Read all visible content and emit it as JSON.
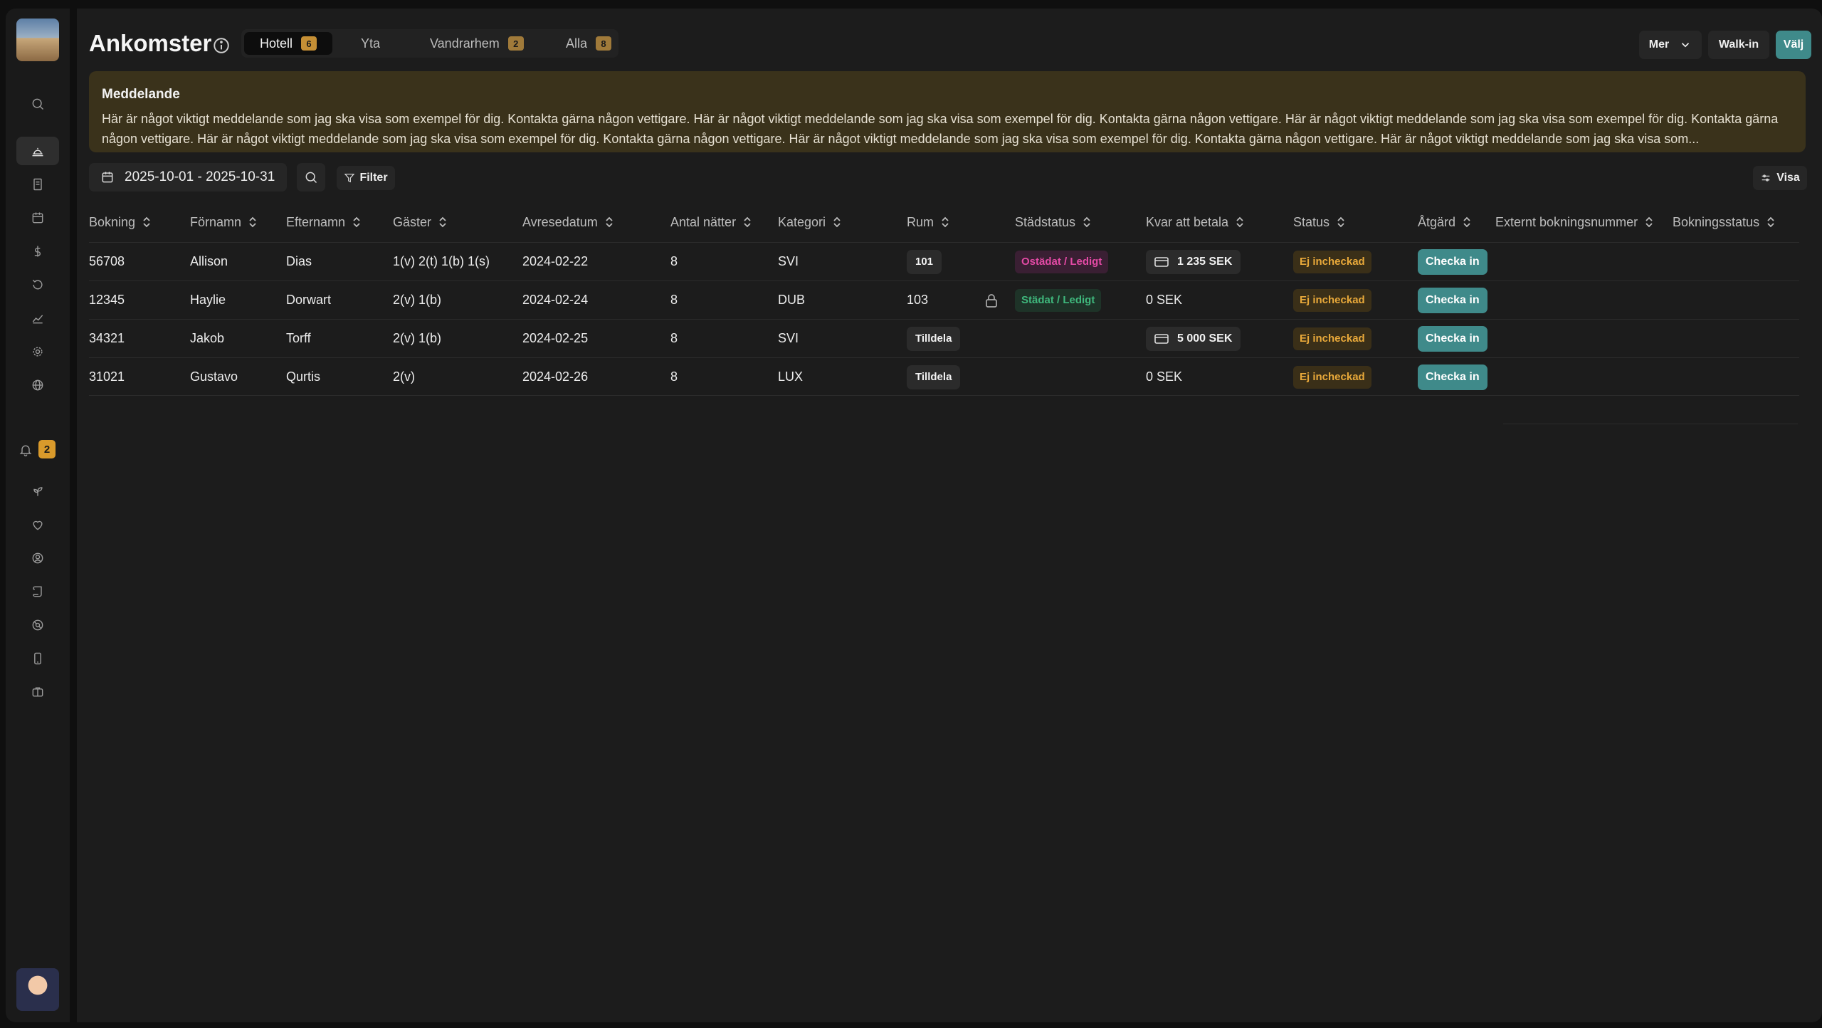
{
  "page": {
    "title": "Ankomster",
    "tabs": [
      {
        "label": "Hotell",
        "count": "6"
      },
      {
        "label": "Yta",
        "count": ""
      },
      {
        "label": "Vandrarhem",
        "count": "2"
      },
      {
        "label": "Alla",
        "count": "8"
      }
    ],
    "actions": {
      "mer": "Mer",
      "walkin": "Walk-in",
      "valj": "Välj"
    }
  },
  "sidebar": {
    "notification_count": "2"
  },
  "message": {
    "title": "Meddelande",
    "body": "Här är något viktigt meddelande som jag ska visa som exempel för dig. Kontakta gärna någon vettigare. Här är något viktigt meddelande som jag ska visa som exempel för dig. Kontakta gärna någon vettigare. Här är något viktigt meddelande som jag ska visa som exempel för dig. Kontakta gärna någon vettigare. Här är något viktigt meddelande som jag ska visa som exempel för dig. Kontakta gärna någon vettigare. Här är något viktigt meddelande som jag ska visa som exempel för dig. Kontakta gärna någon vettigare. Här är något viktigt meddelande som jag ska visa som..."
  },
  "toolbar": {
    "date_range": "2025-10-01 - 2025-10-31",
    "filter": "Filter",
    "visa": "Visa"
  },
  "table": {
    "headers": {
      "bokning": "Bokning",
      "fornamn": "Förnamn",
      "efternamn": "Efternamn",
      "gaster": "Gäster",
      "avresedatum": "Avresedatum",
      "antal_natter": "Antal nätter",
      "kategori": "Kategori",
      "rum": "Rum",
      "stadstatus": "Städstatus",
      "kvar_att_betala": "Kvar att betala",
      "status": "Status",
      "atgard": "Åtgärd",
      "externt": "Externt bokningsnummer",
      "bokningsstatus": "Bokningsstatus"
    },
    "rows": [
      {
        "bokning": "56708",
        "fornamn": "Allison",
        "efternamn": "Dias",
        "gaster": "1(v) 2(t) 1(b) 1(s)",
        "avresedatum": "2024-02-22",
        "natter": "8",
        "kategori": "SVI",
        "rum": "101",
        "stad": "Ostädat / Ledigt",
        "kvar": "1 235 SEK",
        "status": "Ej incheckad",
        "atgard": "Checka in"
      },
      {
        "bokning": "12345",
        "fornamn": "Haylie",
        "efternamn": "Dorwart",
        "gaster": "2(v) 1(b)",
        "avresedatum": "2024-02-24",
        "natter": "8",
        "kategori": "DUB",
        "rum": "103",
        "stad": "Städat / Ledigt",
        "kvar": "0 SEK",
        "status": "Ej incheckad",
        "atgard": "Checka in"
      },
      {
        "bokning": "34321",
        "fornamn": "Jakob",
        "efternamn": "Torff",
        "gaster": "2(v) 1(b)",
        "avresedatum": "2024-02-25",
        "natter": "8",
        "kategori": "SVI",
        "rum": "Tilldela",
        "stad": "",
        "kvar": "5 000 SEK",
        "status": "Ej incheckad",
        "atgard": "Checka in"
      },
      {
        "bokning": "31021",
        "fornamn": "Gustavo",
        "efternamn": "Qurtis",
        "gaster": "2(v)",
        "avresedatum": "2024-02-26",
        "natter": "8",
        "kategori": "LUX",
        "rum": "Tilldela",
        "stad": "",
        "kvar": "0 SEK",
        "status": "Ej incheckad",
        "atgard": "Checka in"
      }
    ]
  },
  "colors": {
    "accent": "#3f8a8a",
    "warning": "#e9a93a",
    "dirty": "#e34aa5",
    "clean": "#3fb77c"
  }
}
